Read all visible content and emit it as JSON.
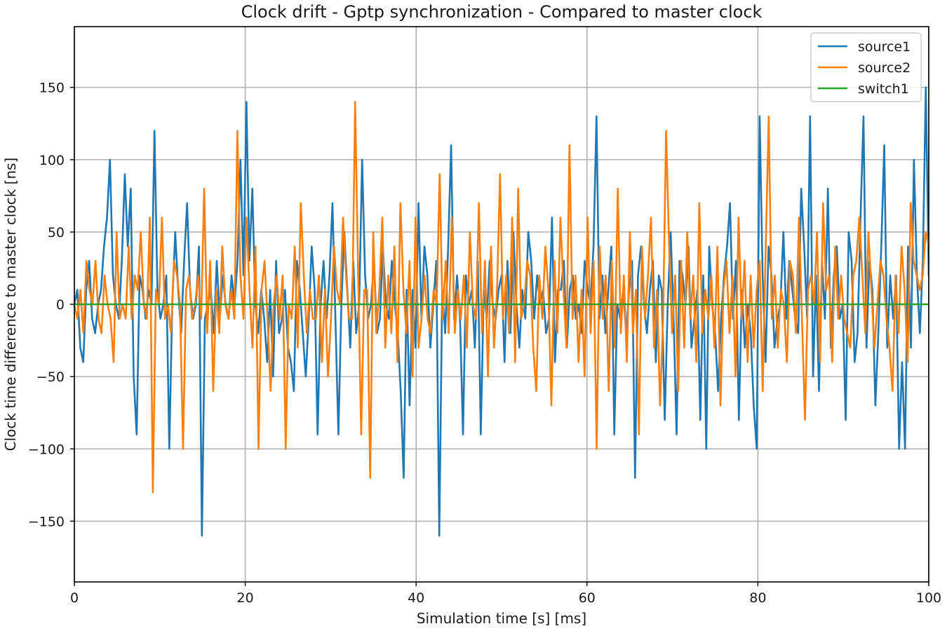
{
  "chart_data": {
    "type": "line",
    "title": "Clock drift - Gptp synchronization - Compared to master clock",
    "xlabel": "Simulation time [s] [ms]",
    "ylabel": "Clock time difference to master clock [ns]",
    "xlim": [
      0,
      100
    ],
    "ylim": [
      -192,
      192
    ],
    "xticks": [
      0,
      20,
      40,
      60,
      80,
      100
    ],
    "xtick_labels": [
      "0",
      "20",
      "40",
      "60",
      "80",
      "100"
    ],
    "yticks": [
      -150,
      -100,
      -50,
      0,
      50,
      100,
      150
    ],
    "ytick_labels": [
      "−150",
      "−100",
      "−50",
      "0",
      "50",
      "100",
      "150"
    ],
    "grid": true,
    "legend_position": "top-right",
    "colors": {
      "source1": "#1f77b4",
      "source2": "#ff7f0e",
      "switch1": "#2ca02c"
    },
    "sample_step": 0.25,
    "series": [
      {
        "name": "source1",
        "values": [
          0,
          10,
          -30,
          -40,
          10,
          30,
          -10,
          -20,
          0,
          10,
          40,
          60,
          100,
          20,
          0,
          -10,
          30,
          90,
          40,
          80,
          -50,
          -90,
          20,
          10,
          -10,
          10,
          0,
          120,
          10,
          -10,
          0,
          20,
          -100,
          0,
          50,
          10,
          -20,
          30,
          70,
          10,
          -10,
          0,
          40,
          -160,
          -10,
          0,
          10,
          -20,
          30,
          -10,
          20,
          0,
          -10,
          20,
          0,
          30,
          100,
          20,
          140,
          30,
          80,
          0,
          -20,
          10,
          -10,
          -40,
          10,
          -50,
          30,
          -20,
          -10,
          10,
          -30,
          -40,
          -60,
          30,
          10,
          -20,
          -50,
          -10,
          40,
          10,
          -90,
          0,
          30,
          -10,
          20,
          70,
          -10,
          -90,
          0,
          50,
          10,
          -30,
          30,
          -20,
          0,
          100,
          20,
          -10,
          0,
          30,
          -20,
          -10,
          40,
          0,
          -10,
          30,
          0,
          -20,
          -60,
          -120,
          10,
          -70,
          10,
          -30,
          70,
          -10,
          40,
          20,
          -30,
          0,
          30,
          -160,
          10,
          -20,
          40,
          110,
          -10,
          20,
          -10,
          -90,
          20,
          0,
          10,
          -30,
          30,
          -90,
          10,
          -10,
          30,
          0,
          -10,
          10,
          20,
          -40,
          30,
          -20,
          50,
          0,
          -30,
          10,
          -10,
          50,
          30,
          -10,
          20,
          0,
          10,
          -20,
          -10,
          60,
          -40,
          10,
          10,
          30,
          -30,
          10,
          20,
          -10,
          0,
          -20,
          30,
          10,
          0,
          40,
          130,
          -10,
          20,
          -20,
          10,
          40,
          -90,
          0,
          -10,
          10,
          -20,
          10,
          30,
          -120,
          20,
          40,
          0,
          -20,
          10,
          30,
          -40,
          20,
          10,
          -80,
          0,
          50,
          -10,
          -90,
          30,
          20,
          0,
          40,
          -30,
          -10,
          10,
          -80,
          20,
          -100,
          40,
          0,
          -20,
          -60,
          -10,
          20,
          40,
          70,
          -10,
          30,
          -80,
          10,
          -30,
          0,
          -20,
          -70,
          -100,
          130,
          20,
          -40,
          40,
          20,
          -30,
          -10,
          0,
          50,
          -10,
          30,
          10,
          -10,
          -20,
          80,
          40,
          -10,
          130,
          -50,
          20,
          -60,
          30,
          -10,
          80,
          -30,
          20,
          40,
          -10,
          0,
          -80,
          50,
          30,
          -40,
          -20,
          60,
          130,
          -30,
          30,
          10,
          -70,
          -20,
          40,
          110,
          -30,
          20,
          -10,
          20,
          -100,
          -40,
          -100,
          40,
          -30,
          100,
          20,
          -20,
          30,
          150,
          20
        ]
      },
      {
        "name": "source2",
        "values": [
          0,
          -10,
          10,
          -20,
          30,
          10,
          0,
          30,
          -10,
          -20,
          20,
          0,
          -10,
          -40,
          50,
          -10,
          0,
          -10,
          40,
          -10,
          20,
          10,
          50,
          0,
          -10,
          60,
          -130,
          10,
          0,
          60,
          -10,
          0,
          -20,
          30,
          20,
          0,
          -100,
          10,
          20,
          -10,
          0,
          20,
          -10,
          80,
          -20,
          30,
          -60,
          10,
          -20,
          40,
          0,
          -10,
          10,
          -10,
          120,
          20,
          -10,
          60,
          10,
          -30,
          40,
          -100,
          10,
          30,
          -10,
          -60,
          0,
          20,
          -10,
          20,
          -100,
          0,
          -10,
          40,
          -30,
          70,
          20,
          -20,
          10,
          -10,
          -10,
          20,
          -40,
          10,
          -50,
          -10,
          40,
          10,
          0,
          60,
          20,
          -10,
          -10,
          140,
          20,
          -90,
          10,
          10,
          -120,
          50,
          -20,
          10,
          60,
          -30,
          20,
          -20,
          40,
          -40,
          70,
          10,
          -20,
          30,
          -50,
          60,
          -30,
          -10,
          20,
          -10,
          -20,
          10,
          0,
          90,
          -10,
          30,
          -20,
          60,
          -20,
          10,
          -10,
          20,
          -30,
          50,
          0,
          -10,
          70,
          -20,
          30,
          -50,
          40,
          -30,
          10,
          90,
          -10,
          20,
          -20,
          60,
          -40,
          80,
          -10,
          0,
          30,
          20,
          -30,
          -60,
          20,
          -10,
          40,
          10,
          -70,
          30,
          -20,
          60,
          10,
          -30,
          110,
          -10,
          20,
          -40,
          10,
          -50,
          60,
          -20,
          30,
          -100,
          40,
          -10,
          20,
          -60,
          30,
          -30,
          80,
          -20,
          20,
          -40,
          50,
          -20,
          10,
          -90,
          40,
          -10,
          20,
          60,
          -30,
          10,
          -70,
          -10,
          120,
          40,
          -20,
          20,
          -60,
          30,
          -30,
          50,
          -10,
          20,
          -40,
          70,
          -20,
          10,
          -10,
          20,
          -30,
          40,
          -70,
          10,
          30,
          -20,
          20,
          -50,
          60,
          -10,
          30,
          -40,
          20,
          -30,
          10,
          30,
          -60,
          40,
          130,
          -10,
          20,
          -30,
          10,
          0,
          -40,
          30,
          20,
          -20,
          60,
          -10,
          -80,
          10,
          20,
          0,
          50,
          -40,
          70,
          10,
          20,
          -40,
          40,
          -10,
          20,
          -10,
          -20,
          -30,
          20,
          30,
          60,
          20,
          -20,
          50,
          10,
          -30,
          0,
          30,
          20,
          -10,
          -30,
          -60,
          20,
          -20,
          40,
          10,
          -40,
          70,
          30,
          20,
          10,
          20,
          50,
          40
        ]
      },
      {
        "name": "switch1",
        "values": [
          0,
          0
        ]
      }
    ]
  }
}
